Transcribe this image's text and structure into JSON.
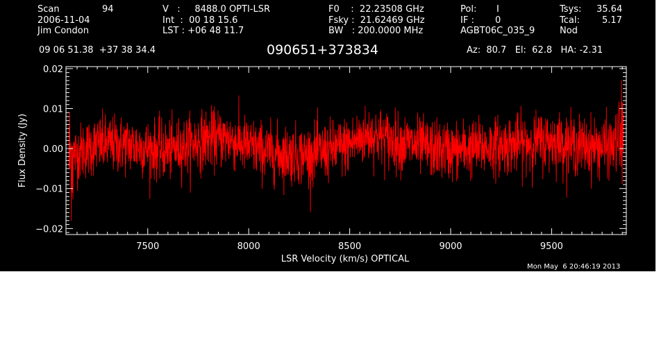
{
  "header": {
    "scan_label": "Scan",
    "scan_value": "94",
    "date": "2006-11-04",
    "observer": "Jim Condon",
    "v_line": "V   :     8488.0 OPTI-LSR",
    "int_line": "Int  :  00 18 15.6",
    "lst_line": "LST : +06 48 11.7",
    "f0_line": "F0    :  22.23508 GHz",
    "fsky_line": "Fsky :  21.62469 GHz",
    "bw_line": "BW   : 200.0000 MHz",
    "pol_label": "Pol:",
    "pol_value": "I",
    "if_label": "IF :",
    "if_value": "0",
    "project": "AGBT06C_035_9",
    "tsys_label": "Tsys:",
    "tsys_value": "35.64",
    "tcal_label": "Tcal:",
    "tcal_value": "5.17",
    "proc": "Nod",
    "coords": "09 06 51.38  +37 38 34.4",
    "source": "090651+373834",
    "azel": "Az:  80.7   El:  62.8   HA: -2.31"
  },
  "footer_timestamp": "Mon May  6 20:46:19 2013",
  "chart_data": {
    "type": "line",
    "title": "090651+373834",
    "xlabel": "LSR Velocity (km/s) OPTICAL",
    "ylabel": "Flux Density (Jy)",
    "xlim": [
      7095,
      9870
    ],
    "ylim": [
      -0.0215,
      0.0205
    ],
    "x_ticks": [
      7500,
      8000,
      8500,
      9000,
      9500
    ],
    "y_ticks": [
      -0.02,
      -0.01,
      0.0,
      0.01,
      0.02
    ],
    "x_tick_labels": [
      "7500",
      "8000",
      "8500",
      "9000",
      "9500"
    ],
    "y_tick_labels": [
      "−0.02",
      "−0.01",
      "0.00",
      "0.01",
      "0.02"
    ],
    "grid": false,
    "series": [
      {
        "color": "#ff0000",
        "x_range": [
          7110,
          9855
        ],
        "n_points": 2400,
        "noise_sigma": 0.0036,
        "baseline": {
          "x": [
            7110,
            7250,
            7400,
            7500,
            7600,
            7700,
            7800,
            7900,
            8000,
            8100,
            8200,
            8300,
            8400,
            8500,
            8550,
            8600,
            8650,
            8700,
            8800,
            8900,
            9000,
            9100,
            9200,
            9300,
            9400,
            9500,
            9600,
            9700,
            9800,
            9855
          ],
          "y": [
            -0.002,
            0.001,
            0.001,
            0.0,
            -0.0005,
            0.001,
            0.0025,
            0.0025,
            0.0005,
            -0.001,
            -0.0015,
            -0.0015,
            -0.0005,
            0.001,
            0.0025,
            0.0035,
            0.003,
            0.002,
            0.001,
            0.0,
            -0.0005,
            0.0,
            0.0005,
            0.001,
            0.0015,
            0.002,
            0.001,
            0.0005,
            0.0005,
            0.003
          ]
        }
      }
    ]
  }
}
